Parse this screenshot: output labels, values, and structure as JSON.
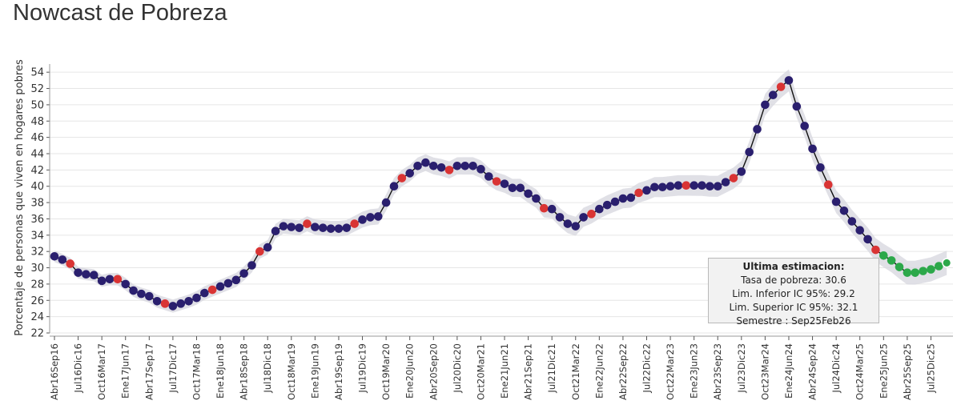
{
  "page": {
    "title": "Nowcast de Pobreza"
  },
  "tooltip": {
    "title": "Ultima estimacion:",
    "lines": [
      "Tasa de pobreza:  30.6",
      "Lim. Inferior IC 95%:  29.2",
      "Lim. Superior IC 95%:  32.1",
      "Semestre : Sep25Feb26"
    ]
  },
  "chart_data": {
    "type": "line",
    "title": "Nowcast de Pobreza",
    "ylabel": "Porcentaje de personas que viven en hogares pobres",
    "xlabel": "",
    "ylim": [
      22,
      55
    ],
    "yticks": [
      22,
      24,
      26,
      28,
      30,
      32,
      34,
      36,
      38,
      40,
      42,
      44,
      46,
      48,
      50,
      52,
      54
    ],
    "grid": true,
    "colors": {
      "nowcast": "#2a1f6e",
      "observed": "#d93434",
      "latest": "#2ca84a",
      "line": "#111111",
      "band": "#d8d8e0"
    },
    "x_tick_labels": [
      "Abr16Sep16",
      "Jul16Dic16",
      "Oct16Mar17",
      "Ene17Jun17",
      "Abr17Sep17",
      "Jul17Dic17",
      "Oct17Mar18",
      "Ene18Jun18",
      "Abr18Sep18",
      "Jul18Dic18",
      "Oct18Mar19",
      "Ene19Jun19",
      "Abr19Sep19",
      "Jul19Dic19",
      "Oct19Mar20",
      "Ene20Jun20",
      "Abr20Sep20",
      "Jul20Dic20",
      "Oct20Mar21",
      "Ene21Jun21",
      "Abr21Sep21",
      "Jul21Dic21",
      "Oct21Mar22",
      "Ene22Jun22",
      "Abr22Sep22",
      "Jul22Dic22",
      "Oct22Mar23",
      "Ene23Jun23",
      "Abr23Sep23",
      "Jul23Dic23",
      "Oct23Mar24",
      "Ene24Jun24",
      "Abr24Sep24",
      "Jul24Dic24",
      "Oct24Mar25",
      "Ene25Jun25",
      "Abr25Sep25",
      "Jul25Dic25"
    ],
    "points_per_tick": 3,
    "values": [
      31.4,
      31.0,
      30.5,
      29.4,
      29.2,
      29.1,
      28.4,
      28.6,
      28.6,
      28.0,
      27.2,
      26.8,
      26.5,
      25.9,
      25.6,
      25.3,
      25.6,
      25.9,
      26.3,
      26.9,
      27.3,
      27.7,
      28.1,
      28.5,
      29.3,
      30.3,
      32.0,
      32.5,
      34.5,
      35.1,
      35.0,
      34.9,
      35.4,
      35.0,
      34.9,
      34.8,
      34.8,
      34.9,
      35.4,
      35.9,
      36.2,
      36.3,
      38.0,
      40.0,
      41.0,
      41.6,
      42.5,
      42.9,
      42.5,
      42.3,
      42.0,
      42.5,
      42.5,
      42.5,
      42.1,
      41.2,
      40.6,
      40.3,
      39.8,
      39.8,
      39.1,
      38.5,
      37.3,
      37.2,
      36.2,
      35.4,
      35.1,
      36.2,
      36.6,
      37.2,
      37.7,
      38.1,
      38.5,
      38.6,
      39.2,
      39.5,
      39.9,
      39.9,
      40.0,
      40.1,
      40.1,
      40.1,
      40.1,
      40.0,
      40.0,
      40.5,
      41.0,
      41.8,
      44.2,
      47.0,
      50.0,
      51.2,
      52.2,
      53.0,
      49.8,
      47.4,
      44.6,
      42.3,
      40.2,
      38.1,
      37.0,
      35.7,
      34.6,
      33.5,
      32.2,
      31.5,
      30.9,
      30.1,
      29.4,
      29.4,
      29.6,
      29.8,
      30.2,
      30.6
    ],
    "observed_indices": [
      2,
      8,
      14,
      20,
      26,
      32,
      38,
      44,
      50,
      56,
      62,
      68,
      74,
      80,
      86,
      92,
      98,
      104
    ],
    "latest_indices": [
      105,
      106,
      107,
      108,
      109,
      110,
      111,
      112,
      113
    ],
    "series": [
      {
        "values_ref": "values"
      }
    ]
  }
}
